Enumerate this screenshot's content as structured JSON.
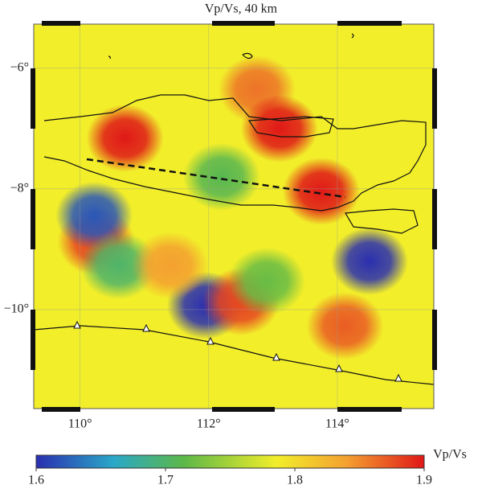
{
  "chart_data": {
    "type": "heatmap",
    "title": "Vp/Vs, 40 km",
    "xlim": [
      109.28,
      115.5
    ],
    "ylim": [
      -11.64,
      -5.27
    ],
    "xticks": [
      {
        "value": 110,
        "label": "110°"
      },
      {
        "value": 112,
        "label": "112°"
      },
      {
        "value": 114,
        "label": "114°"
      }
    ],
    "yticks": [
      {
        "value": -6,
        "label": "−6°"
      },
      {
        "value": -8,
        "label": "−8°"
      },
      {
        "value": -10,
        "label": "−10°"
      }
    ],
    "grid": true,
    "anomalies": [
      {
        "lon": 110.7,
        "lat": -7.16,
        "value": 1.9
      },
      {
        "lon": 112.75,
        "lat": -6.35,
        "value": 1.86
      },
      {
        "lon": 113.1,
        "lat": -7.0,
        "value": 1.9
      },
      {
        "lon": 113.75,
        "lat": -8.04,
        "value": 1.9
      },
      {
        "lon": 114.5,
        "lat": -9.2,
        "value": 1.6
      },
      {
        "lon": 111.95,
        "lat": -9.93,
        "value": 1.6
      },
      {
        "lon": 110.25,
        "lat": -8.87,
        "value": 1.88
      },
      {
        "lon": 112.5,
        "lat": -9.87,
        "value": 1.88
      },
      {
        "lon": 110.22,
        "lat": -8.44,
        "value": 1.62
      },
      {
        "lon": 114.12,
        "lat": -10.27,
        "value": 1.87
      },
      {
        "lon": 110.6,
        "lat": -9.27,
        "value": 1.7
      },
      {
        "lon": 112.2,
        "lat": -7.8,
        "value": 1.71
      },
      {
        "lon": 112.9,
        "lat": -9.53,
        "value": 1.72
      },
      {
        "lon": 111.4,
        "lat": -9.27,
        "value": 1.84
      }
    ],
    "colorbar": {
      "label": "Vp/Vs",
      "lim": [
        1.6,
        1.9
      ],
      "ticks": [
        1.6,
        1.7,
        1.8,
        1.9
      ]
    }
  }
}
